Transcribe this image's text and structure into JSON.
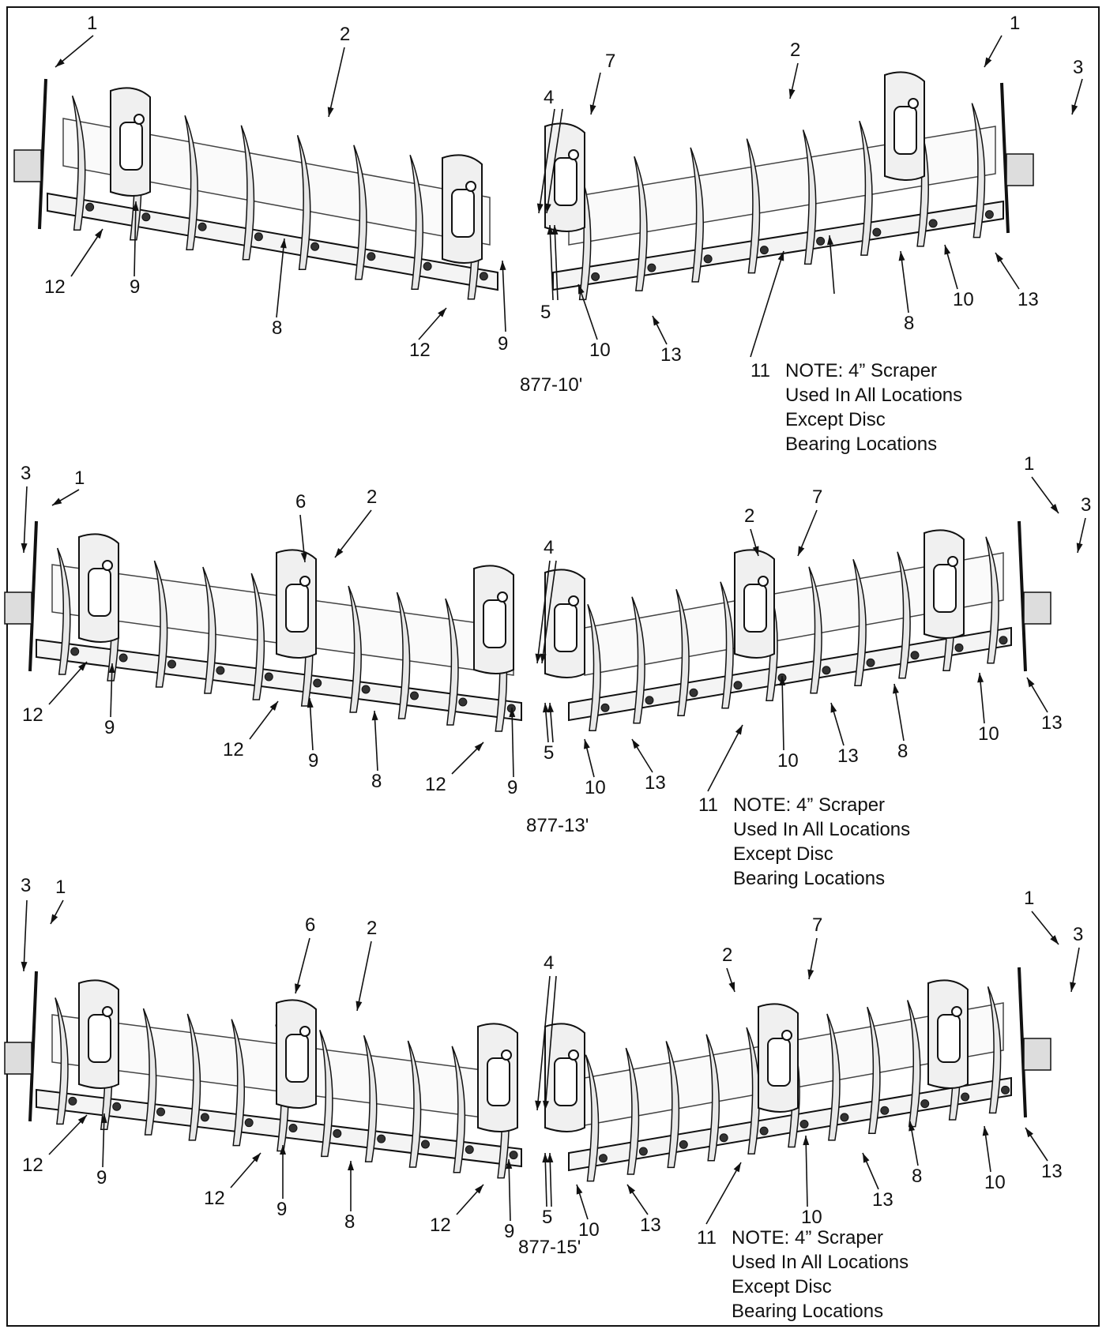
{
  "diagrams": [
    {
      "model": "877-10'",
      "note_number": "11",
      "note_lines": [
        "NOTE: 4” Scraper",
        "Used In All Locations",
        "Except Disc",
        "Bearing Locations"
      ],
      "callouts": [
        "1",
        "2",
        "1",
        "3",
        "7",
        "4",
        "2",
        "12",
        "9",
        "8",
        "12",
        "9",
        "5",
        "10",
        "13",
        "11",
        "8",
        "10",
        "13"
      ]
    },
    {
      "model": "877-13'",
      "note_number": "11",
      "note_lines": [
        "NOTE: 4” Scraper",
        "Used In All Locations",
        "Except Disc",
        "Bearing Locations"
      ],
      "callouts": [
        "3",
        "1",
        "6",
        "2",
        "4",
        "2",
        "7",
        "1",
        "3",
        "12",
        "9",
        "12",
        "9",
        "8",
        "12",
        "9",
        "5",
        "10",
        "13",
        "10",
        "13",
        "8",
        "10",
        "13"
      ]
    },
    {
      "model": "877-15'",
      "note_number": "11",
      "note_lines": [
        "NOTE: 4” Scraper",
        "Used In All Locations",
        "Except Disc",
        "Bearing Locations"
      ],
      "callouts": [
        "3",
        "1",
        "6",
        "2",
        "4",
        "2",
        "7",
        "1",
        "3",
        "12",
        "9",
        "12",
        "9",
        "8",
        "12",
        "9",
        "5",
        "10",
        "13",
        "10",
        "13",
        "8",
        "10",
        "13"
      ]
    }
  ]
}
